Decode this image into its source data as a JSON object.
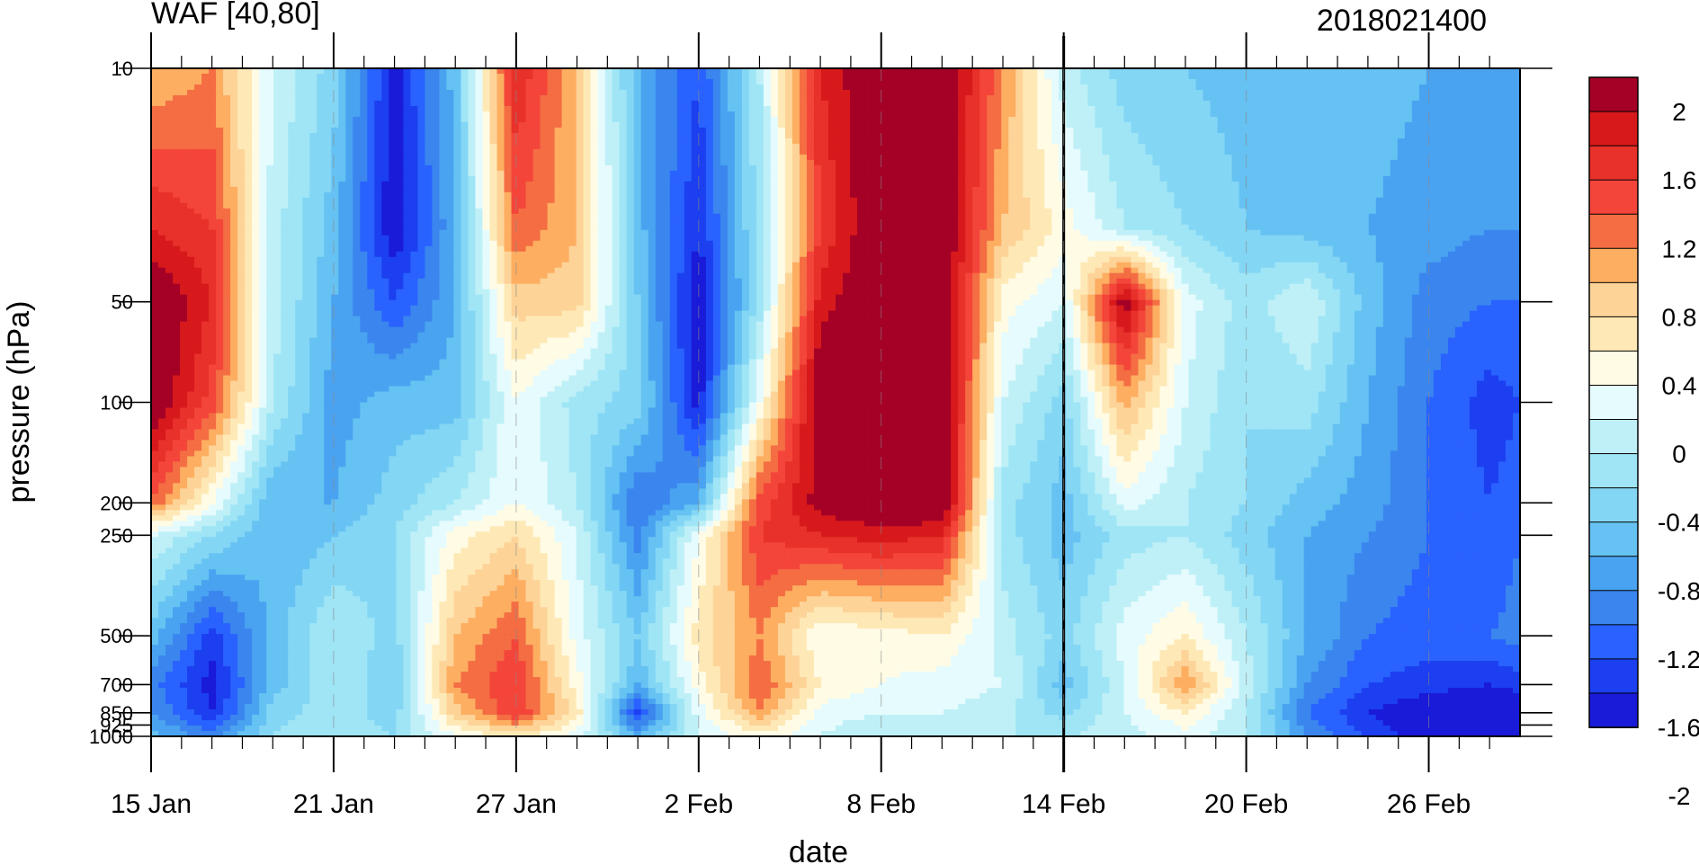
{
  "chart_data": {
    "type": "heatmap",
    "title_left": "WAF [40,80]",
    "title_right": "2018021400",
    "xlabel": "date",
    "ylabel": "pressure (hPa)",
    "x_tick_labels": [
      "15 Jan",
      "21 Jan",
      "27 Jan",
      "2 Feb",
      "8 Feb",
      "14 Feb",
      "20 Feb",
      "26 Feb"
    ],
    "y_scale": "log",
    "y_reversed": true,
    "y_ticks": [
      {
        "value": 10,
        "label": "10"
      },
      {
        "value": 50,
        "label": "50"
      },
      {
        "value": 100,
        "label": "100"
      },
      {
        "value": 200,
        "label": "200"
      },
      {
        "value": 250,
        "label": "250"
      },
      {
        "value": 500,
        "label": "500"
      },
      {
        "value": 700,
        "label": "700"
      },
      {
        "value": 850,
        "label": "850"
      },
      {
        "value": 925,
        "label": "925"
      },
      {
        "value": 1000,
        "label": "1000"
      }
    ],
    "ylim": [
      1000,
      10
    ],
    "xlim_days": [
      0,
      45
    ],
    "marker_date": "14 Feb",
    "colorbar": {
      "colors": [
        "#a50026",
        "#d7191c",
        "#e8312a",
        "#f4453a",
        "#f46d43",
        "#fdae61",
        "#fdd398",
        "#fee9b6",
        "#fffbe5",
        "#e6fbfd",
        "#bff0f7",
        "#9fe5f5",
        "#84d6f5",
        "#66c2f2",
        "#4aa3f0",
        "#3a86ee",
        "#2962ff",
        "#1c3ff0",
        "#1a1ad9"
      ],
      "tick_labels": [
        "2",
        "1.6",
        "1.2",
        "0.8",
        "0.4",
        "0",
        "-0.4",
        "-0.8",
        "-1.2",
        "-1.6",
        "-2"
      ],
      "levels": [
        2.2,
        2.0,
        1.8,
        1.6,
        1.4,
        1.2,
        1.0,
        0.8,
        0.6,
        0.4,
        0.2,
        0.0,
        -0.2,
        -0.4,
        -0.6,
        -0.8,
        -1.0,
        -1.2,
        -1.4,
        -1.6,
        -1.8,
        -2.0,
        -2.2
      ]
    },
    "field": {
      "days": [
        0,
        2,
        4,
        6,
        8,
        10,
        12,
        14,
        16,
        18,
        20,
        22,
        24,
        26,
        28,
        30,
        32,
        34,
        36,
        38,
        40,
        42,
        44,
        45
      ],
      "pressures": [
        10,
        30,
        50,
        100,
        200,
        250,
        500,
        700,
        850,
        1000
      ],
      "values": [
        [
          1.0,
          1.2,
          0.2,
          -0.3,
          -1.5,
          -0.5,
          1.8,
          1.0,
          -0.6,
          -1.2,
          0.0,
          1.8,
          2.3,
          2.3,
          1.2,
          0.1,
          -0.3,
          -0.4,
          -0.5,
          -0.5,
          -0.5,
          -0.6,
          -0.6,
          -0.6
        ],
        [
          1.8,
          1.6,
          0.1,
          -0.5,
          -1.6,
          -0.6,
          1.4,
          1.0,
          -0.5,
          -1.4,
          -0.1,
          1.6,
          2.3,
          2.3,
          1.0,
          0.5,
          0.0,
          -0.2,
          -0.4,
          -0.5,
          -0.6,
          -0.7,
          -0.8,
          -0.8
        ],
        [
          2.3,
          1.8,
          0.1,
          -0.6,
          -1.2,
          -0.6,
          0.9,
          0.9,
          -0.4,
          -1.6,
          -0.1,
          1.9,
          2.3,
          2.3,
          0.5,
          0.2,
          2.2,
          0.3,
          -0.1,
          0.2,
          -0.5,
          -0.9,
          -1.0,
          -1.0
        ],
        [
          2.3,
          1.5,
          0.0,
          -0.7,
          -0.5,
          -0.5,
          0.4,
          -0.1,
          -0.3,
          -1.5,
          0.4,
          2.3,
          2.3,
          2.3,
          0.2,
          -0.3,
          1.1,
          0.2,
          -0.2,
          -0.1,
          -0.6,
          -1.0,
          -1.3,
          -1.2
        ],
        [
          1.4,
          0.4,
          -0.6,
          -0.6,
          -0.3,
          0.0,
          0.4,
          0.0,
          -1.0,
          -0.6,
          1.5,
          2.1,
          2.3,
          2.3,
          -0.1,
          -0.5,
          0.3,
          0.0,
          -0.2,
          -0.5,
          -0.7,
          -1.0,
          -1.2,
          -1.1
        ],
        [
          0.2,
          -0.2,
          -0.6,
          -0.4,
          -0.2,
          0.5,
          0.8,
          0.2,
          -0.9,
          0.4,
          1.6,
          1.8,
          1.9,
          1.8,
          -0.1,
          -0.5,
          -0.1,
          0.0,
          -0.3,
          -0.6,
          -0.8,
          -1.0,
          -1.2,
          -1.0
        ],
        [
          -0.5,
          -1.3,
          -0.5,
          0.0,
          -0.3,
          1.0,
          1.4,
          0.3,
          -0.4,
          0.7,
          1.2,
          0.4,
          0.5,
          0.6,
          0.1,
          -0.3,
          0.3,
          0.6,
          0.0,
          -0.6,
          -1.0,
          -1.1,
          -1.0,
          -0.9
        ],
        [
          -0.9,
          -1.5,
          -0.5,
          0.0,
          -0.4,
          1.2,
          1.6,
          0.5,
          -0.6,
          0.5,
          1.4,
          0.6,
          0.4,
          0.3,
          0.2,
          -0.5,
          0.2,
          1.2,
          0.1,
          -0.8,
          -1.2,
          -1.3,
          -1.4,
          -1.3
        ],
        [
          -0.8,
          -1.4,
          -0.3,
          -0.1,
          -0.3,
          0.9,
          1.6,
          0.7,
          -1.3,
          0.3,
          1.2,
          0.3,
          0.2,
          0.2,
          0.1,
          -0.3,
          0.2,
          0.6,
          0.0,
          -1.0,
          -1.4,
          -1.6,
          -1.8,
          -1.6
        ],
        [
          -0.5,
          -0.9,
          -0.2,
          0.0,
          -0.2,
          0.4,
          0.7,
          0.3,
          -0.6,
          0.2,
          0.5,
          0.2,
          0.0,
          0.0,
          0.0,
          0.0,
          0.1,
          0.3,
          0.0,
          -0.8,
          -1.2,
          -1.6,
          -2.0,
          -1.8
        ]
      ]
    }
  }
}
